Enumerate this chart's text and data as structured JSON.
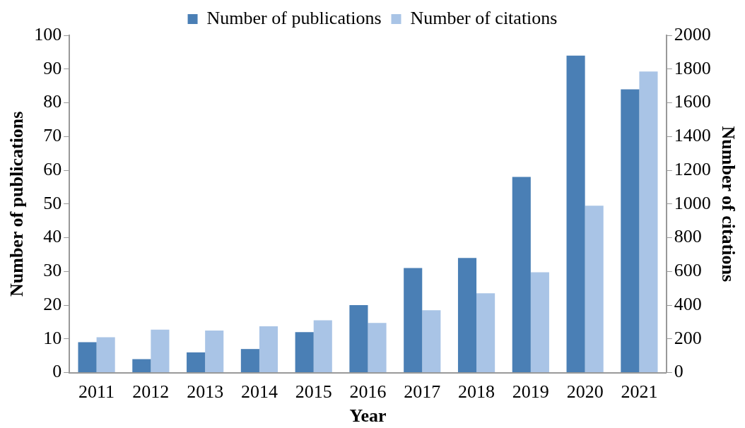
{
  "chart_data": {
    "type": "bar",
    "xlabel": "Year",
    "ylabel": "Number of publications",
    "y2label": "Number of citations",
    "categories": [
      "2011",
      "2012",
      "2013",
      "2014",
      "2015",
      "2016",
      "2017",
      "2018",
      "2019",
      "2020",
      "2021"
    ],
    "series": [
      {
        "name": "Number of publications",
        "color": "#4a7fb5",
        "values": [
          9,
          4,
          6,
          7,
          12,
          20,
          31,
          34,
          58,
          94,
          84
        ]
      },
      {
        "name": "Number of citations",
        "color": "#a9c4e6",
        "axis": "y2",
        "values": [
          210,
          255,
          250,
          275,
          310,
          295,
          370,
          470,
          595,
          990,
          1785
        ]
      }
    ],
    "ylim": [
      0,
      100
    ],
    "yticks": [
      0,
      10,
      20,
      30,
      40,
      50,
      60,
      70,
      80,
      90,
      100
    ],
    "y2lim": [
      0,
      2000
    ],
    "y2ticks": [
      0,
      200,
      400,
      600,
      800,
      1000,
      1200,
      1400,
      1600,
      1800,
      2000
    ],
    "grid": false,
    "legend": "top"
  }
}
